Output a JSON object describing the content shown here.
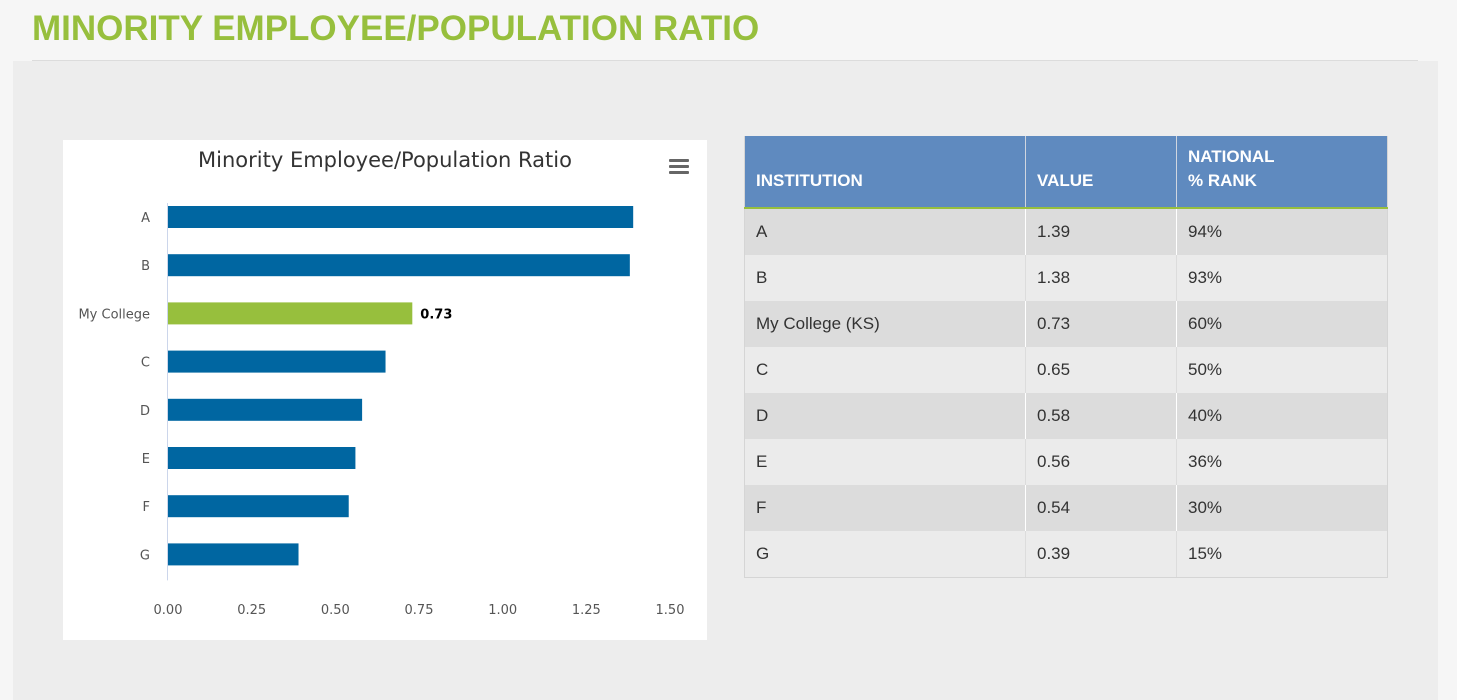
{
  "page": {
    "title": "MINORITY EMPLOYEE/POPULATION RATIO"
  },
  "chart_data": {
    "type": "bar",
    "orientation": "horizontal",
    "title": "Minority Employee/Population Ratio",
    "categories": [
      "A",
      "B",
      "My College",
      "C",
      "D",
      "E",
      "F",
      "G"
    ],
    "values": [
      1.39,
      1.38,
      0.73,
      0.65,
      0.58,
      0.56,
      0.54,
      0.39
    ],
    "highlight_index": 2,
    "highlight_label": "0.73",
    "xlim": [
      0,
      1.5
    ],
    "xticks": [
      "0.00",
      "0.25",
      "0.50",
      "0.75",
      "1.00",
      "1.25",
      "1.50"
    ],
    "xlabel": "",
    "ylabel": "",
    "grid": false,
    "colors": {
      "bar": "#0066a1",
      "highlight": "#97bf3d"
    }
  },
  "table": {
    "headers": {
      "institution": "INSTITUTION",
      "value": "VALUE",
      "rank_line1": "NATIONAL",
      "rank_line2": "% RANK"
    },
    "rows": [
      {
        "institution": "A",
        "value": "1.39",
        "rank": "94%"
      },
      {
        "institution": "B",
        "value": "1.38",
        "rank": "93%"
      },
      {
        "institution": "My College (KS)",
        "value": "0.73",
        "rank": "60%"
      },
      {
        "institution": "C",
        "value": "0.65",
        "rank": "50%"
      },
      {
        "institution": "D",
        "value": "0.58",
        "rank": "40%"
      },
      {
        "institution": "E",
        "value": "0.56",
        "rank": "36%"
      },
      {
        "institution": "F",
        "value": "0.54",
        "rank": "30%"
      },
      {
        "institution": "G",
        "value": "0.39",
        "rank": "15%"
      }
    ]
  },
  "icons": {
    "chart_menu": "hamburger-menu-icon"
  }
}
